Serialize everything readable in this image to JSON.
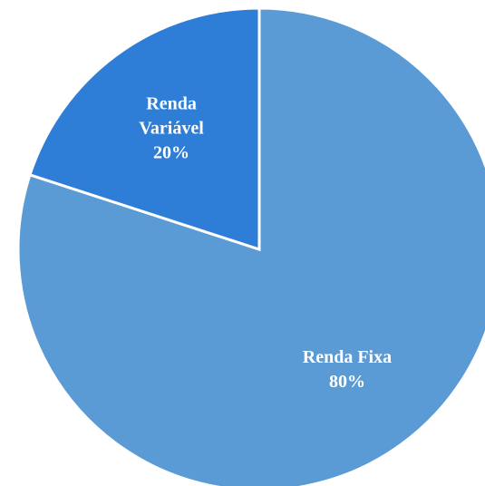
{
  "chart_data": {
    "type": "pie",
    "categories": [
      "Renda Fixa",
      "Renda Variável"
    ],
    "values": [
      80,
      20
    ],
    "value_labels": [
      "80%",
      "20%"
    ],
    "colors": [
      "#5b9bd5",
      "#2e7dd7"
    ]
  }
}
